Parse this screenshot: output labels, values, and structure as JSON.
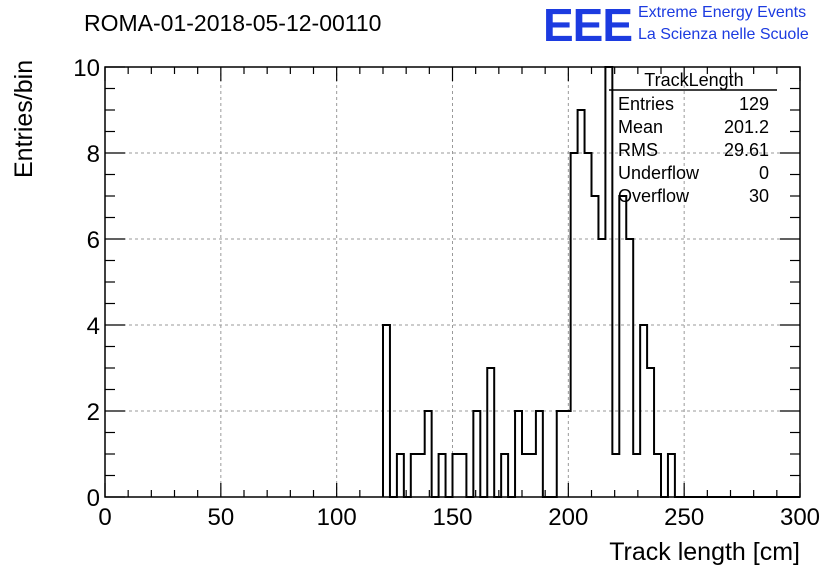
{
  "header": {
    "run_title": "ROMA-01-2018-05-12-00110",
    "logo_mark": "EEE",
    "logo_line1": "Extreme Energy Events",
    "logo_line2": "La Scienza nelle Scuole"
  },
  "stats_box": {
    "title": "TrackLength",
    "rows": [
      {
        "label": "Entries",
        "value": "129"
      },
      {
        "label": "Mean",
        "value": "201.2"
      },
      {
        "label": "RMS",
        "value": "29.61"
      },
      {
        "label": "Underflow",
        "value": "0"
      },
      {
        "label": "Overflow",
        "value": "30"
      }
    ]
  },
  "colors": {
    "logo": "#1c3be0",
    "grid": "#9a9a9a",
    "line": "#000000"
  },
  "chart_data": {
    "type": "bar",
    "style": "step-histogram",
    "xlabel": "Track length [cm]",
    "ylabel": "Entries/bin",
    "xlim": [
      0,
      300
    ],
    "ylim": [
      0,
      10
    ],
    "grid": true,
    "bin_width": 3,
    "x_ticks": [
      0,
      50,
      100,
      150,
      200,
      250,
      300
    ],
    "y_ticks": [
      0,
      2,
      4,
      6,
      8,
      10
    ],
    "bins": [
      {
        "x": 120,
        "count": 4
      },
      {
        "x": 126,
        "count": 1
      },
      {
        "x": 132,
        "count": 1
      },
      {
        "x": 135,
        "count": 1
      },
      {
        "x": 138,
        "count": 2
      },
      {
        "x": 144,
        "count": 1
      },
      {
        "x": 150,
        "count": 1
      },
      {
        "x": 153,
        "count": 0
      },
      {
        "x": 153,
        "count": 1
      },
      {
        "x": 159,
        "count": 2
      },
      {
        "x": 165,
        "count": 3
      },
      {
        "x": 171,
        "count": 1
      },
      {
        "x": 177,
        "count": 2
      },
      {
        "x": 180,
        "count": 1
      },
      {
        "x": 183,
        "count": 1
      },
      {
        "x": 186,
        "count": 2
      },
      {
        "x": 195,
        "count": 2
      },
      {
        "x": 198,
        "count": 2
      },
      {
        "x": 201,
        "count": 8
      },
      {
        "x": 204,
        "count": 9
      },
      {
        "x": 207,
        "count": 8
      },
      {
        "x": 210,
        "count": 7
      },
      {
        "x": 213,
        "count": 6
      },
      {
        "x": 216,
        "count": 10
      },
      {
        "x": 219,
        "count": 1
      },
      {
        "x": 222,
        "count": 7
      },
      {
        "x": 225,
        "count": 6
      },
      {
        "x": 228,
        "count": 1
      },
      {
        "x": 231,
        "count": 4
      },
      {
        "x": 234,
        "count": 3
      },
      {
        "x": 237,
        "count": 1
      },
      {
        "x": 243,
        "count": 1
      }
    ]
  }
}
